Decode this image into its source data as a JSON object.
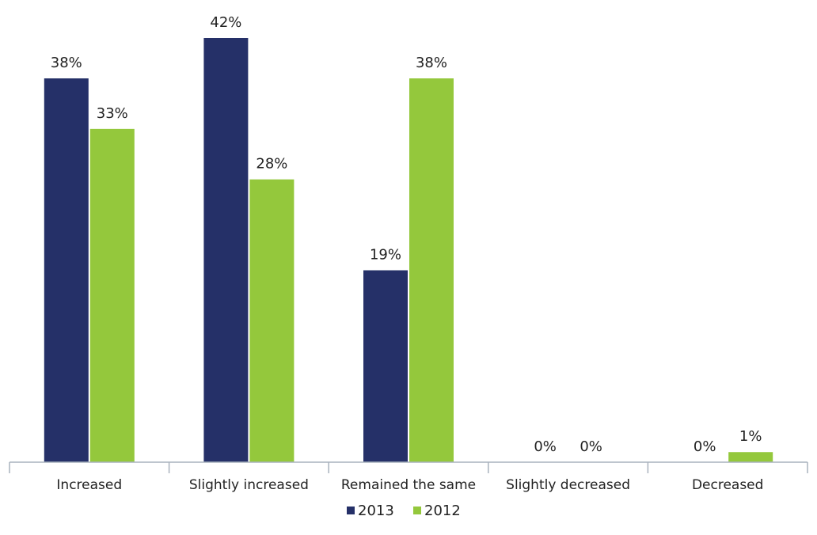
{
  "chart_data": {
    "type": "bar",
    "categories": [
      "Increased",
      "Slightly increased",
      "Remained the same",
      "Slightly decreased",
      "Decreased"
    ],
    "series": [
      {
        "name": "2013",
        "values": [
          38,
          42,
          19,
          0,
          0
        ],
        "labels": [
          "38%",
          "42%",
          "19%",
          "0%",
          "0%"
        ],
        "color": "#253068"
      },
      {
        "name": "2012",
        "values": [
          33,
          28,
          38,
          0,
          1
        ],
        "labels": [
          "33%",
          "28%",
          "38%",
          "0%",
          "1%"
        ],
        "color": "#94c83c"
      }
    ],
    "ylim": [
      0,
      42
    ],
    "grid": false,
    "legend_position": "bottom-center",
    "axis_color": "#a9b2bd"
  }
}
